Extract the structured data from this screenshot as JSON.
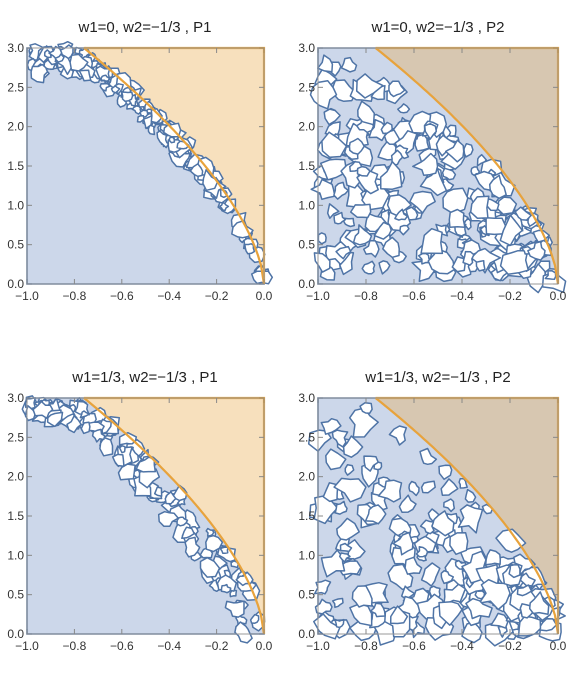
{
  "chart_data": [
    {
      "type": "area",
      "title": "w1=0, w2=−1/3 , P1",
      "xlim": [
        -1.0,
        0.0
      ],
      "ylim": [
        0.0,
        3.0
      ],
      "x_ticks": [
        "−1.0",
        "−0.8",
        "−0.6",
        "−0.4",
        "−0.2",
        "0.0"
      ],
      "y_ticks": [
        "0.0",
        "0.5",
        "1.0",
        "1.5",
        "2.0",
        "2.5",
        "3.0"
      ],
      "variant": "P1",
      "noise_band": [
        0.12,
        0.26
      ],
      "boundary_curve": {
        "description_free": true,
        "x": [
          -0.76,
          -0.6,
          -0.4,
          -0.2,
          -0.05,
          0.0
        ],
        "y": [
          3.0,
          2.62,
          2.06,
          1.38,
          0.72,
          0.0
        ]
      },
      "colors": {
        "region": "#ccd7ea",
        "fill_upper": "#f7e0bd",
        "edge": "#4f74a6",
        "curve": "#e8a33c"
      }
    },
    {
      "type": "area",
      "title": "w1=0, w2=−1/3 , P2",
      "xlim": [
        -1.0,
        0.0
      ],
      "ylim": [
        0.0,
        3.0
      ],
      "x_ticks": [
        "−1.0",
        "−0.8",
        "−0.6",
        "−0.4",
        "−0.2",
        "0.0"
      ],
      "y_ticks": [
        "0.0",
        "0.5",
        "1.0",
        "1.5",
        "2.0",
        "2.5",
        "3.0"
      ],
      "variant": "P2",
      "noise_band": [
        0.0,
        0.95
      ],
      "boundary_curve": {
        "x": [
          -0.76,
          -0.6,
          -0.4,
          -0.2,
          -0.05,
          0.0
        ],
        "y": [
          3.0,
          2.62,
          2.06,
          1.38,
          0.72,
          0.0
        ]
      },
      "colors": {
        "region": "#ccd7ea",
        "fill_upper": "#d7c7b1",
        "edge": "#4f74a6",
        "curve": "#e8a33c"
      }
    },
    {
      "type": "area",
      "title": "w1=1/3, w2=−1/3 , P1",
      "xlim": [
        -1.0,
        0.0
      ],
      "ylim": [
        0.0,
        3.0
      ],
      "x_ticks": [
        "−1.0",
        "−0.8",
        "−0.6",
        "−0.4",
        "−0.2",
        "0.0"
      ],
      "y_ticks": [
        "0.0",
        "0.5",
        "1.0",
        "1.5",
        "2.0",
        "2.5",
        "3.0"
      ],
      "variant": "P1",
      "noise_band": [
        0.2,
        0.6
      ],
      "boundary_curve": {
        "x": [
          -0.76,
          -0.6,
          -0.4,
          -0.2,
          -0.05,
          0.0
        ],
        "y": [
          3.0,
          2.62,
          2.06,
          1.38,
          0.72,
          0.0
        ]
      },
      "colors": {
        "region": "#ccd7ea",
        "fill_upper": "#f7e0bd",
        "edge": "#4f74a6",
        "curve": "#e8a33c"
      }
    },
    {
      "type": "area",
      "title": "w1=1/3, w2=−1/3 , P2",
      "xlim": [
        -1.0,
        0.0
      ],
      "ylim": [
        0.0,
        3.0
      ],
      "x_ticks": [
        "−1.0",
        "−0.8",
        "−0.6",
        "−0.4",
        "−0.2",
        "0.0"
      ],
      "y_ticks": [
        "0.0",
        "0.5",
        "1.0",
        "1.5",
        "2.0",
        "2.5",
        "3.0"
      ],
      "variant": "P2",
      "noise_band": [
        0.08,
        0.8
      ],
      "boundary_curve": {
        "x": [
          -0.76,
          -0.6,
          -0.4,
          -0.2,
          -0.05,
          0.0
        ],
        "y": [
          3.0,
          2.62,
          2.06,
          1.38,
          0.72,
          0.0
        ]
      },
      "colors": {
        "region": "#ccd7ea",
        "fill_upper": "#d7c7b1",
        "edge": "#4f74a6",
        "curve": "#e8a33c"
      }
    }
  ]
}
